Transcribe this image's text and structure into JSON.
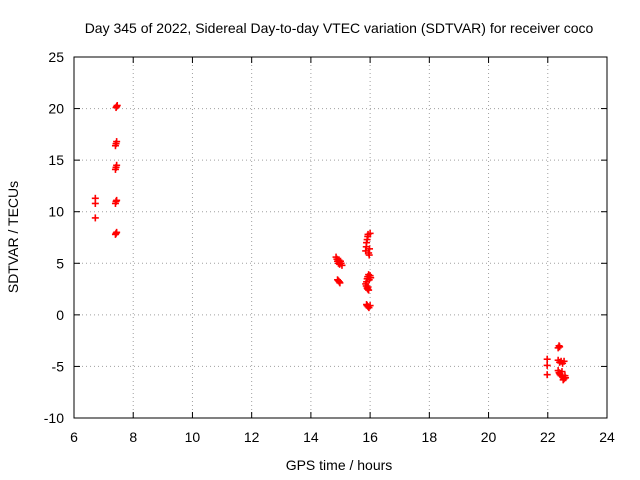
{
  "chart_data": {
    "type": "scatter",
    "title": "Day 345 of 2022, Sidereal Day-to-day VTEC variation (SDTVAR) for receiver coco",
    "xlabel": "GPS time / hours",
    "ylabel": "SDTVAR / TECUs",
    "xlim": [
      6,
      24
    ],
    "ylim": [
      -10,
      25
    ],
    "xticks": [
      6,
      8,
      10,
      12,
      14,
      16,
      18,
      20,
      22,
      24
    ],
    "yticks": [
      -10,
      -5,
      0,
      5,
      10,
      15,
      20,
      25
    ],
    "grid": true,
    "marker": "plus",
    "color": "#ff0000",
    "series": [
      {
        "name": "SDTVAR",
        "x": [
          7.42,
          7.44,
          7.46,
          7.4,
          7.42,
          7.44,
          7.4,
          7.42,
          7.44,
          7.4,
          7.42,
          7.44,
          7.4,
          7.42,
          7.44,
          6.72,
          6.72,
          6.72,
          14.85,
          14.88,
          14.9,
          14.93,
          14.95,
          14.97,
          15.0,
          15.02,
          15.05,
          14.9,
          14.93,
          14.96,
          14.98,
          15.85,
          15.87,
          15.88,
          15.9,
          15.92,
          15.93,
          15.95,
          15.97,
          15.98,
          16.0,
          15.85,
          15.87,
          15.88,
          15.9,
          15.92,
          15.93,
          15.95,
          15.97,
          16.0,
          16.02,
          15.88,
          15.9,
          15.93,
          15.96,
          16.0,
          15.9,
          15.92,
          15.95,
          21.98,
          21.98,
          21.98,
          22.35,
          22.38,
          22.4,
          22.35,
          22.4,
          22.45,
          22.5,
          22.55,
          22.35,
          22.4,
          22.45,
          22.5,
          22.55,
          22.6,
          22.38,
          22.42,
          22.48,
          22.52,
          22.58
        ],
        "y": [
          20.1,
          20.2,
          20.3,
          16.4,
          16.6,
          16.8,
          14.1,
          14.3,
          14.5,
          10.8,
          11.0,
          11.1,
          7.8,
          7.9,
          8.0,
          11.3,
          10.8,
          9.4,
          5.6,
          5.4,
          5.2,
          5.0,
          5.3,
          4.9,
          5.2,
          5.0,
          4.8,
          3.4,
          3.3,
          3.2,
          3.1,
          6.2,
          6.6,
          7.0,
          7.3,
          7.6,
          7.8,
          6.0,
          5.8,
          6.4,
          7.9,
          3.0,
          2.8,
          3.2,
          3.5,
          3.7,
          2.7,
          3.9,
          3.4,
          3.8,
          3.6,
          1.0,
          0.9,
          0.8,
          0.7,
          0.9,
          2.6,
          2.5,
          2.4,
          -4.3,
          -4.9,
          -5.8,
          -3.2,
          -3.0,
          -3.1,
          -4.4,
          -4.6,
          -4.5,
          -4.7,
          -4.5,
          -5.4,
          -5.7,
          -5.9,
          -6.0,
          -6.2,
          -6.1,
          -5.6,
          -5.8,
          -5.5,
          -6.3,
          -5.9
        ]
      }
    ]
  }
}
